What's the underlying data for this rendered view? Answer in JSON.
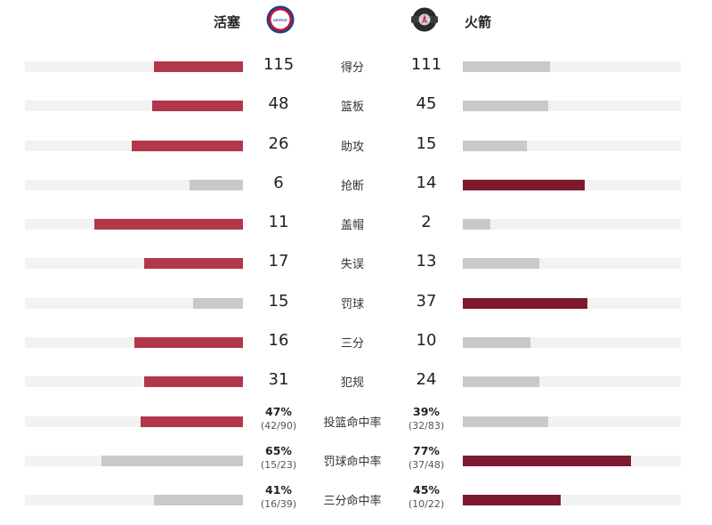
{
  "home": {
    "name": "活塞",
    "logo_icon": "pistons-logo-icon",
    "logo_text": "DETROIT PISTONS"
  },
  "away": {
    "name": "火箭",
    "logo_icon": "rockets-logo-icon",
    "logo_text": "HOUSTON ROCKETS"
  },
  "colors": {
    "home_lead": "#b2374a",
    "away_lead": "#7d1a30",
    "trail": "#c9c9c9",
    "track": "#f2f2f2"
  },
  "stats": [
    {
      "label": "得分",
      "home": "115",
      "away": "111",
      "home_ratio": 0.41,
      "away_ratio": 0.4,
      "leader": "home"
    },
    {
      "label": "篮板",
      "home": "48",
      "away": "45",
      "home_ratio": 0.415,
      "away_ratio": 0.39,
      "leader": "home"
    },
    {
      "label": "助攻",
      "home": "26",
      "away": "15",
      "home_ratio": 0.51,
      "away_ratio": 0.295,
      "leader": "home"
    },
    {
      "label": "抢断",
      "home": "6",
      "away": "14",
      "home_ratio": 0.245,
      "away_ratio": 0.56,
      "leader": "away"
    },
    {
      "label": "盖帽",
      "home": "11",
      "away": "2",
      "home_ratio": 0.68,
      "away_ratio": 0.125,
      "leader": "home"
    },
    {
      "label": "失误",
      "home": "17",
      "away": "13",
      "home_ratio": 0.455,
      "away_ratio": 0.35,
      "leader": "home"
    },
    {
      "label": "罚球",
      "home": "15",
      "away": "37",
      "home_ratio": 0.23,
      "away_ratio": 0.57,
      "leader": "away"
    },
    {
      "label": "三分",
      "home": "16",
      "away": "10",
      "home_ratio": 0.5,
      "away_ratio": 0.31,
      "leader": "home"
    },
    {
      "label": "犯规",
      "home": "31",
      "away": "24",
      "home_ratio": 0.455,
      "away_ratio": 0.35,
      "leader": "home"
    },
    {
      "label": "投篮命中率",
      "home": "47%",
      "home_sub": "(42/90)",
      "away": "39%",
      "away_sub": "(32/83)",
      "home_ratio": 0.47,
      "away_ratio": 0.39,
      "leader": "home"
    },
    {
      "label": "罚球命中率",
      "home": "65%",
      "home_sub": "(15/23)",
      "away": "77%",
      "away_sub": "(37/48)",
      "home_ratio": 0.65,
      "away_ratio": 0.77,
      "leader": "away"
    },
    {
      "label": "三分命中率",
      "home": "41%",
      "home_sub": "(16/39)",
      "away": "45%",
      "away_sub": "(10/22)",
      "home_ratio": 0.41,
      "away_ratio": 0.45,
      "leader": "away"
    }
  ]
}
